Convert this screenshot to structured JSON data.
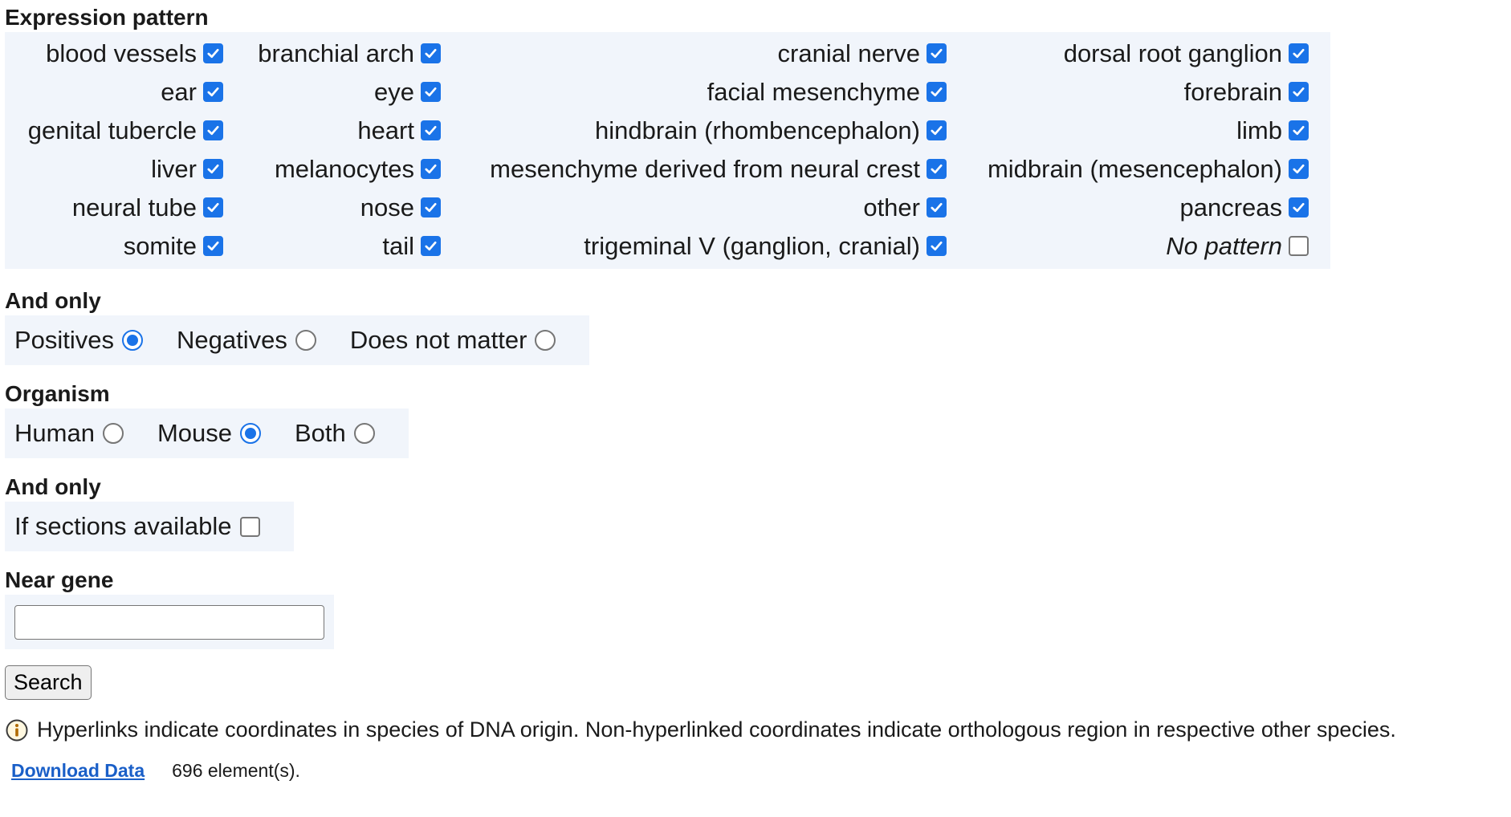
{
  "expression": {
    "title": "Expression pattern",
    "items": [
      {
        "label": "blood vessels",
        "checked": true
      },
      {
        "label": "branchial arch",
        "checked": true
      },
      {
        "label": "cranial nerve",
        "checked": true
      },
      {
        "label": "dorsal root ganglion",
        "checked": true
      },
      {
        "label": "ear",
        "checked": true
      },
      {
        "label": "eye",
        "checked": true
      },
      {
        "label": "facial mesenchyme",
        "checked": true
      },
      {
        "label": "forebrain",
        "checked": true
      },
      {
        "label": "genital tubercle",
        "checked": true
      },
      {
        "label": "heart",
        "checked": true
      },
      {
        "label": "hindbrain (rhombencephalon)",
        "checked": true
      },
      {
        "label": "limb",
        "checked": true
      },
      {
        "label": "liver",
        "checked": true
      },
      {
        "label": "melanocytes",
        "checked": true
      },
      {
        "label": "mesenchyme derived from neural crest",
        "checked": true
      },
      {
        "label": "midbrain (mesencephalon)",
        "checked": true
      },
      {
        "label": "neural tube",
        "checked": true
      },
      {
        "label": "nose",
        "checked": true
      },
      {
        "label": "other",
        "checked": true
      },
      {
        "label": "pancreas",
        "checked": true
      },
      {
        "label": "somite",
        "checked": true
      },
      {
        "label": "tail",
        "checked": true
      },
      {
        "label": "trigeminal V (ganglion, cranial)",
        "checked": true
      },
      {
        "label": "No pattern",
        "checked": false
      }
    ]
  },
  "and_only_1": {
    "title": "And only",
    "options": [
      {
        "label": "Positives",
        "selected": true
      },
      {
        "label": "Negatives",
        "selected": false
      },
      {
        "label": "Does not matter",
        "selected": false
      }
    ]
  },
  "organism": {
    "title": "Organism",
    "options": [
      {
        "label": "Human",
        "selected": false
      },
      {
        "label": "Mouse",
        "selected": true
      },
      {
        "label": "Both",
        "selected": false
      }
    ]
  },
  "and_only_2": {
    "title": "And only",
    "sections": {
      "label": "If sections available",
      "checked": false
    }
  },
  "near_gene": {
    "title": "Near gene",
    "value": ""
  },
  "search_label": "Search",
  "info_text": "Hyperlinks indicate coordinates in species of DNA origin. Non-hyperlinked coordinates indicate orthologous region in respective other species.",
  "download_label": "Download Data",
  "element_count": "696 element(s).",
  "colors": {
    "accent": "#1a73e8",
    "panel_bg": "#f1f5fb",
    "link": "#1a5fc8"
  }
}
